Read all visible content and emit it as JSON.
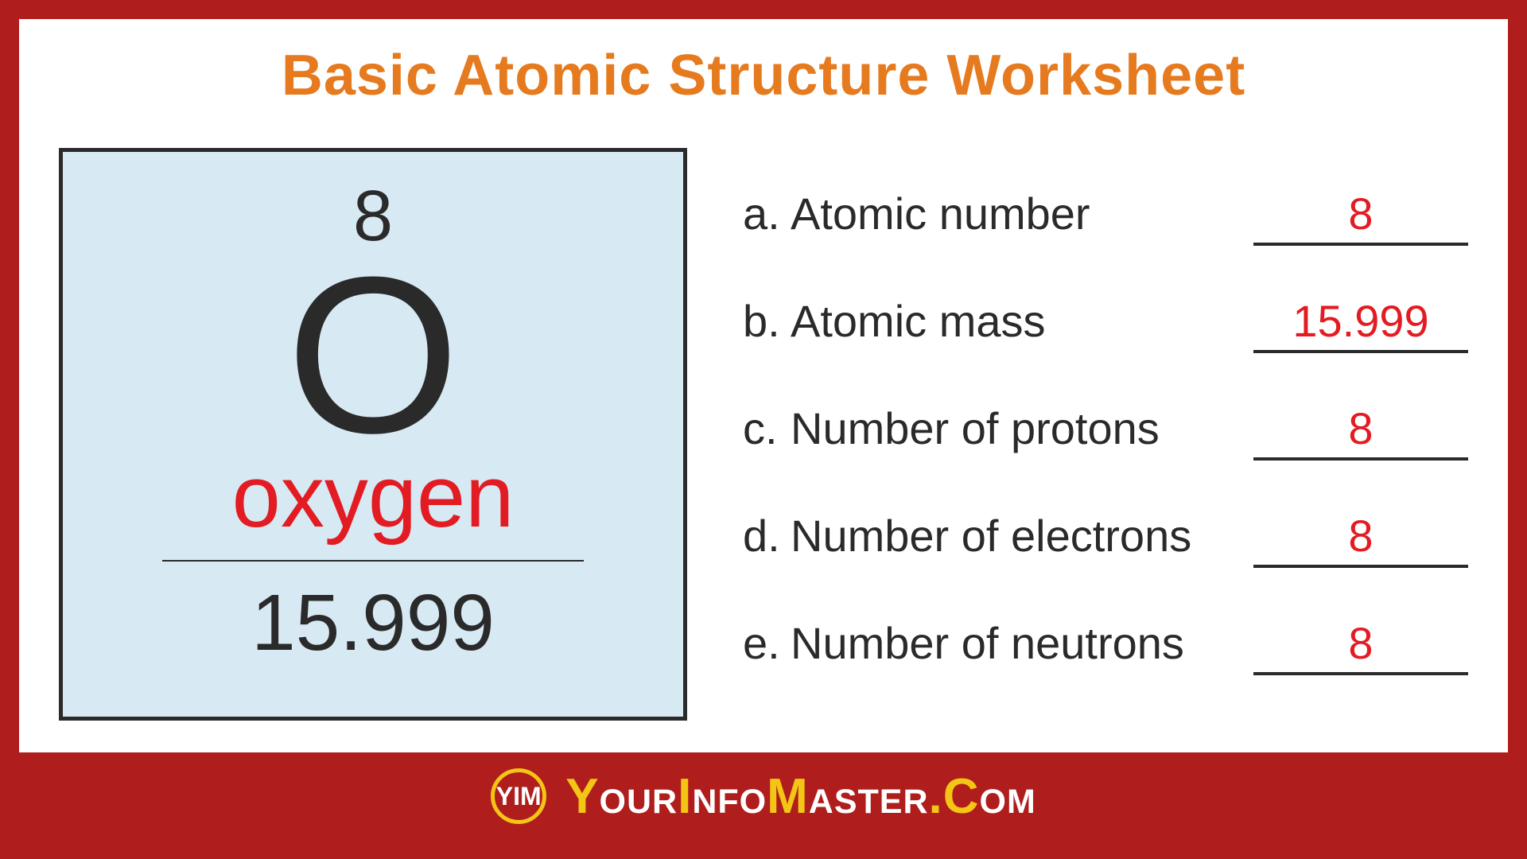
{
  "title": "Basic Atomic Structure Worksheet",
  "colors": {
    "frame": "#b01d1d",
    "title": "#e67a1f",
    "tile_bg": "#d7e9f3",
    "tile_border": "#2a2a2a",
    "text": "#2a2a2a",
    "answer": "#e31b23",
    "element_name": "#e31b23",
    "footer_bg": "#b01d1d",
    "brand_text": "#ffffff",
    "brand_accent": "#f3c515"
  },
  "element": {
    "atomic_number": "8",
    "symbol": "O",
    "name": "oxygen",
    "mass": "15.999"
  },
  "questions": [
    {
      "label": "a.",
      "text": "Atomic number",
      "answer": "8"
    },
    {
      "label": "b.",
      "text": "Atomic mass",
      "answer": "15.999"
    },
    {
      "label": "c.",
      "text": "Number of protons",
      "answer": "8"
    },
    {
      "label": "d.",
      "text": "Number of electrons",
      "answer": "8"
    },
    {
      "label": "e.",
      "text": "Number of neutrons",
      "answer": "8"
    }
  ],
  "footer": {
    "logo_text": "YIM",
    "brand_pre": "Y",
    "brand_1": "our",
    "brand_i": "I",
    "brand_2": "nfo",
    "brand_m": "M",
    "brand_3": "aster",
    "brand_dot": ".C",
    "brand_4": "om"
  },
  "typography": {
    "title_fontsize": 72,
    "tile_number_fontsize": 90,
    "tile_symbol_fontsize": 280,
    "tile_name_fontsize": 110,
    "tile_mass_fontsize": 100,
    "question_fontsize": 56,
    "answer_fontsize": 56,
    "brand_fontsize": 62
  }
}
